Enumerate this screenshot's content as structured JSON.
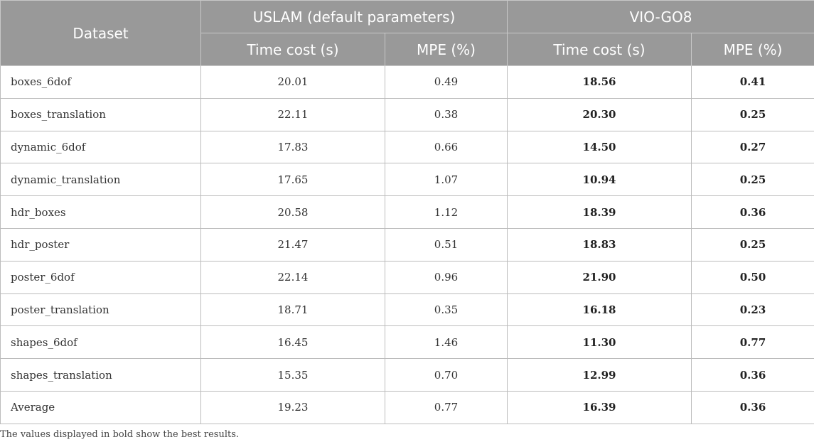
{
  "table": {
    "header": {
      "dataset": "Dataset",
      "group_uslam": "USLAM (default parameters)",
      "group_vio": "VIO-GO8",
      "uslam_time": "Time cost (s)",
      "uslam_mpe": "MPE (%)",
      "vio_time": "Time cost (s)",
      "vio_mpe": "MPE (%)"
    },
    "rows": [
      {
        "dataset": "boxes_6dof",
        "uslam_time": "20.01",
        "uslam_mpe": "0.49",
        "vio_time": "18.56",
        "vio_mpe": "0.41"
      },
      {
        "dataset": "boxes_translation",
        "uslam_time": "22.11",
        "uslam_mpe": "0.38",
        "vio_time": "20.30",
        "vio_mpe": "0.25"
      },
      {
        "dataset": "dynamic_6dof",
        "uslam_time": "17.83",
        "uslam_mpe": "0.66",
        "vio_time": "14.50",
        "vio_mpe": "0.27"
      },
      {
        "dataset": "dynamic_translation",
        "uslam_time": "17.65",
        "uslam_mpe": "1.07",
        "vio_time": "10.94",
        "vio_mpe": "0.25"
      },
      {
        "dataset": "hdr_boxes",
        "uslam_time": "20.58",
        "uslam_mpe": "1.12",
        "vio_time": "18.39",
        "vio_mpe": "0.36"
      },
      {
        "dataset": "hdr_poster",
        "uslam_time": "21.47",
        "uslam_mpe": "0.51",
        "vio_time": "18.83",
        "vio_mpe": "0.25"
      },
      {
        "dataset": "poster_6dof",
        "uslam_time": "22.14",
        "uslam_mpe": "0.96",
        "vio_time": "21.90",
        "vio_mpe": "0.50"
      },
      {
        "dataset": "poster_translation",
        "uslam_time": "18.71",
        "uslam_mpe": "0.35",
        "vio_time": "16.18",
        "vio_mpe": "0.23"
      },
      {
        "dataset": "shapes_6dof",
        "uslam_time": "16.45",
        "uslam_mpe": "1.46",
        "vio_time": "11.30",
        "vio_mpe": "0.77"
      },
      {
        "dataset": "shapes_translation",
        "uslam_time": "15.35",
        "uslam_mpe": "0.70",
        "vio_time": "12.99",
        "vio_mpe": "0.36"
      },
      {
        "dataset": "Average",
        "uslam_time": "19.23",
        "uslam_mpe": "0.77",
        "vio_time": "16.39",
        "vio_mpe": "0.36"
      }
    ]
  },
  "footnote": "The values displayed in bold show the best results.",
  "colors": {
    "header_bg": "#999999",
    "header_text": "#ffffff",
    "border": "#bcbcbc"
  }
}
